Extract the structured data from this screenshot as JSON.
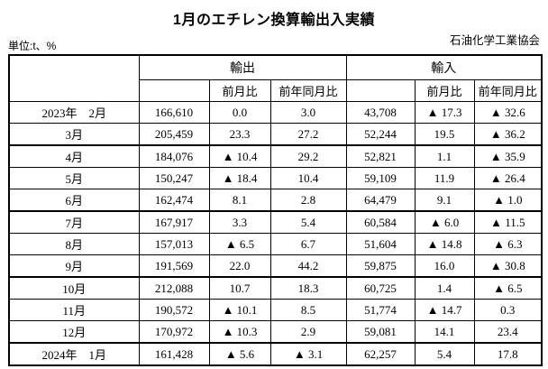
{
  "title": "1月のエチレン換算輸出入実績",
  "unit_note": "単位:t、%",
  "organization": "石油化学工業協会",
  "table": {
    "groups": {
      "export": "輸出",
      "import": "輸入"
    },
    "subheaders": {
      "mom": "前月比",
      "yoy": "前年同月比"
    },
    "negative_mark": "▲",
    "rows": [
      {
        "month": "2023年　2月",
        "export_value": "166,610",
        "export_mom": "0.0",
        "export_yoy": "3.0",
        "import_value": "43,708",
        "import_mom": "▲ 17.3",
        "import_yoy": "▲ 32.6",
        "quarter_start": false
      },
      {
        "month": "3月",
        "export_value": "205,459",
        "export_mom": "23.3",
        "export_yoy": "27.2",
        "import_value": "52,244",
        "import_mom": "19.5",
        "import_yoy": "▲ 36.2",
        "quarter_start": false
      },
      {
        "month": "4月",
        "export_value": "184,076",
        "export_mom": "▲ 10.4",
        "export_yoy": "29.2",
        "import_value": "52,821",
        "import_mom": "1.1",
        "import_yoy": "▲ 35.9",
        "quarter_start": true
      },
      {
        "month": "5月",
        "export_value": "150,247",
        "export_mom": "▲ 18.4",
        "export_yoy": "10.4",
        "import_value": "59,109",
        "import_mom": "11.9",
        "import_yoy": "▲ 26.4",
        "quarter_start": false
      },
      {
        "month": "6月",
        "export_value": "162,474",
        "export_mom": "8.1",
        "export_yoy": "2.8",
        "import_value": "64,479",
        "import_mom": "9.1",
        "import_yoy": "▲ 1.0",
        "quarter_start": false
      },
      {
        "month": "7月",
        "export_value": "167,917",
        "export_mom": "3.3",
        "export_yoy": "5.4",
        "import_value": "60,584",
        "import_mom": "▲ 6.0",
        "import_yoy": "▲ 11.5",
        "quarter_start": true
      },
      {
        "month": "8月",
        "export_value": "157,013",
        "export_mom": "▲ 6.5",
        "export_yoy": "6.7",
        "import_value": "51,604",
        "import_mom": "▲ 14.8",
        "import_yoy": "▲ 6.3",
        "quarter_start": false
      },
      {
        "month": "9月",
        "export_value": "191,569",
        "export_mom": "22.0",
        "export_yoy": "44.2",
        "import_value": "59,875",
        "import_mom": "16.0",
        "import_yoy": "▲ 30.8",
        "quarter_start": false
      },
      {
        "month": "10月",
        "export_value": "212,088",
        "export_mom": "10.7",
        "export_yoy": "18.3",
        "import_value": "60,725",
        "import_mom": "1.4",
        "import_yoy": "▲ 6.5",
        "quarter_start": true
      },
      {
        "month": "11月",
        "export_value": "190,572",
        "export_mom": "▲ 10.1",
        "export_yoy": "8.5",
        "import_value": "51,774",
        "import_mom": "▲ 14.7",
        "import_yoy": "0.3",
        "quarter_start": false
      },
      {
        "month": "12月",
        "export_value": "170,972",
        "export_mom": "▲ 10.3",
        "export_yoy": "2.9",
        "import_value": "59,081",
        "import_mom": "14.1",
        "import_yoy": "23.4",
        "quarter_start": false
      },
      {
        "month": "2024年　1月",
        "export_value": "161,428",
        "export_mom": "▲ 5.6",
        "export_yoy": "▲ 3.1",
        "import_value": "62,257",
        "import_mom": "5.4",
        "import_yoy": "17.8",
        "quarter_start": true
      }
    ]
  }
}
